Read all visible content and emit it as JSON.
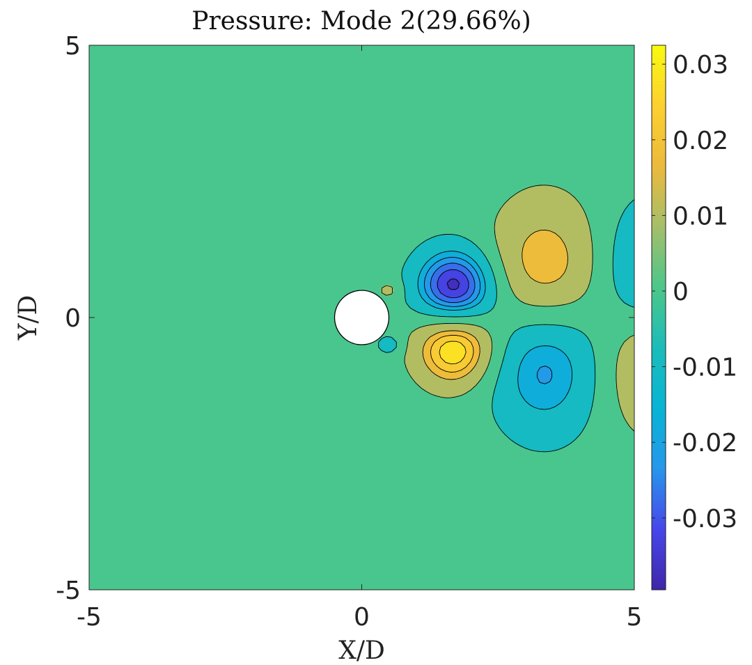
{
  "chart_data": {
    "type": "heatmap",
    "subtype": "filled-contour",
    "title": "Pressure: Mode 2(29.66%)",
    "xlabel": "X/D",
    "ylabel": "Y/D",
    "xlim": [
      -5,
      5
    ],
    "ylim": [
      -5,
      5
    ],
    "xticks": [
      "-5",
      "0",
      "5"
    ],
    "yticks": [
      "5",
      "0",
      "-5"
    ],
    "colormap": "parula",
    "colorbar": {
      "range": [
        -0.0395,
        0.0325
      ],
      "ticks": [
        {
          "value": 0.03,
          "label": "0.03"
        },
        {
          "value": 0.02,
          "label": "0.02"
        },
        {
          "value": 0.01,
          "label": "0.01"
        },
        {
          "value": 0,
          "label": "0"
        },
        {
          "value": -0.01,
          "label": "-0.01"
        },
        {
          "value": -0.02,
          "label": "-0.02"
        },
        {
          "value": -0.03,
          "label": "-0.03"
        }
      ]
    },
    "contour_levels": [
      -0.035,
      -0.03,
      -0.025,
      -0.02,
      -0.015,
      -0.005,
      0.005,
      0.015,
      0.02,
      0.025,
      0.03
    ],
    "background_value": 0,
    "cylinder": {
      "x": 0,
      "y": 0,
      "diameter": 1
    },
    "features": [
      {
        "x": 1.7,
        "y": 0.55,
        "amplitude": -0.0395,
        "sx": 0.5,
        "sy": 0.5
      },
      {
        "x": 1.7,
        "y": -0.55,
        "amplitude": 0.0325,
        "sx": 0.5,
        "sy": 0.5
      },
      {
        "x": 3.35,
        "y": 0.75,
        "amplitude": 0.0245,
        "sx": 0.7,
        "sy": 0.95
      },
      {
        "x": 3.35,
        "y": -0.75,
        "amplitude": -0.026,
        "sx": 0.7,
        "sy": 0.95
      },
      {
        "x": 5.3,
        "y": 0.8,
        "amplitude": -0.02,
        "sx": 0.6,
        "sy": 0.9
      },
      {
        "x": 5.3,
        "y": -0.8,
        "amplitude": 0.018,
        "sx": 0.6,
        "sy": 0.9
      },
      {
        "x": 0.5,
        "y": 0.5,
        "amplitude": 0.009,
        "sx": 0.16,
        "sy": 0.13
      },
      {
        "x": 0.5,
        "y": -0.5,
        "amplitude": -0.012,
        "sx": 0.16,
        "sy": 0.13
      }
    ]
  }
}
